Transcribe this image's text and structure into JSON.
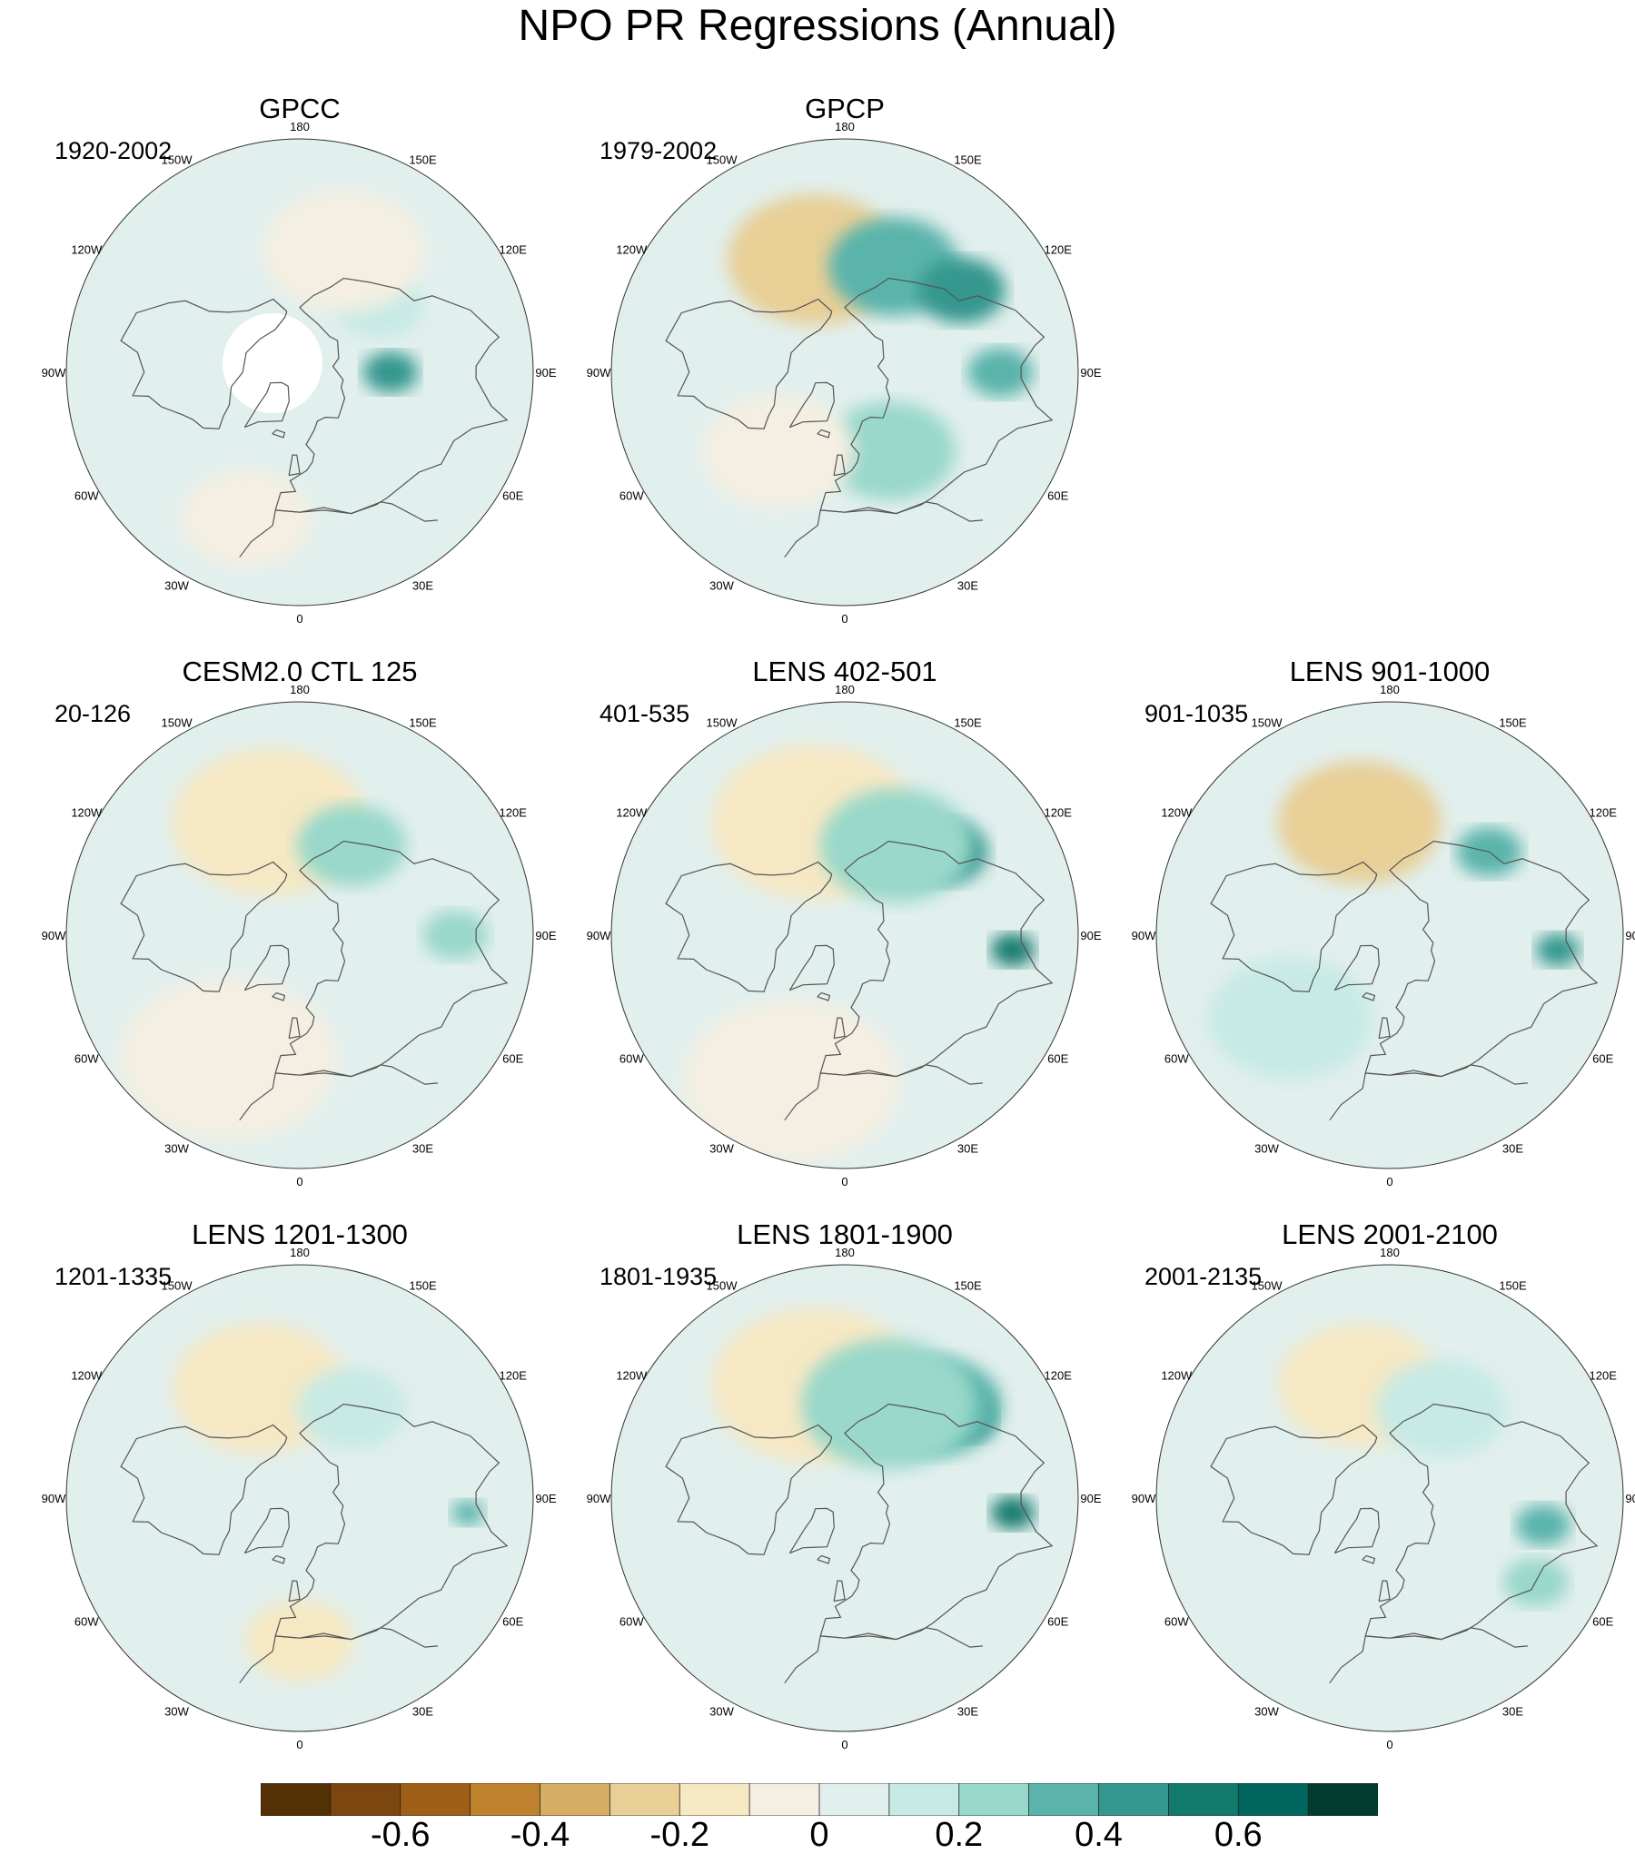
{
  "figure": {
    "title": "NPO PR Regressions (Annual)"
  },
  "longitude_labels": [
    "180",
    "150E",
    "120E",
    "90E",
    "60E",
    "30E",
    "0",
    "30W",
    "60W",
    "90W",
    "120W",
    "150W"
  ],
  "panels": [
    {
      "title": "GPCC",
      "subtitle": "1920-2002",
      "row": 0,
      "col": 0,
      "masked_land": true,
      "anomalies": [
        {
          "lon": 90,
          "lat": 55,
          "value": 0.45,
          "r": 0.05
        },
        {
          "lon": 130,
          "lat": 50,
          "value": 0.15,
          "r": 0.08
        },
        {
          "lon": -20,
          "lat": 30,
          "value": -0.1,
          "r": 0.12
        },
        {
          "lon": 160,
          "lat": 40,
          "value": -0.1,
          "r": 0.15
        }
      ]
    },
    {
      "title": "GPCP",
      "subtitle": "1979-2002",
      "row": 0,
      "col": 1,
      "masked_land": false,
      "anomalies": [
        {
          "lon": -165,
          "lat": 45,
          "value": -0.45,
          "r": 0.09
        },
        {
          "lon": -165,
          "lat": 45,
          "value": -0.25,
          "r": 0.16
        },
        {
          "lon": 155,
          "lat": 45,
          "value": 0.3,
          "r": 0.12
        },
        {
          "lon": 125,
          "lat": 35,
          "value": 0.45,
          "r": 0.08
        },
        {
          "lon": 90,
          "lat": 30,
          "value": 0.3,
          "r": 0.06
        },
        {
          "lon": 30,
          "lat": 55,
          "value": 0.2,
          "r": 0.12
        },
        {
          "lon": -40,
          "lat": 50,
          "value": -0.1,
          "r": 0.14
        }
      ]
    },
    {
      "title": "CESM2.0 CTL 125",
      "subtitle": "20-126",
      "row": 1,
      "col": 0,
      "masked_land": false,
      "anomalies": [
        {
          "lon": -165,
          "lat": 45,
          "value": -0.3,
          "r": 0.1
        },
        {
          "lon": -165,
          "lat": 45,
          "value": -0.15,
          "r": 0.18
        },
        {
          "lon": 150,
          "lat": 50,
          "value": 0.2,
          "r": 0.1
        },
        {
          "lon": 90,
          "lat": 30,
          "value": 0.25,
          "r": 0.06
        },
        {
          "lon": -30,
          "lat": 35,
          "value": -0.1,
          "r": 0.2
        }
      ]
    },
    {
      "title": "LENS 402-501",
      "subtitle": "401-535",
      "row": 1,
      "col": 1,
      "masked_land": false,
      "anomalies": [
        {
          "lon": -165,
          "lat": 45,
          "value": -0.55,
          "r": 0.07
        },
        {
          "lon": -165,
          "lat": 45,
          "value": -0.35,
          "r": 0.12
        },
        {
          "lon": -165,
          "lat": 45,
          "value": -0.2,
          "r": 0.19
        },
        {
          "lon": 130,
          "lat": 40,
          "value": 0.4,
          "r": 0.08
        },
        {
          "lon": 150,
          "lat": 50,
          "value": 0.2,
          "r": 0.14
        },
        {
          "lon": 85,
          "lat": 25,
          "value": 0.55,
          "r": 0.04
        },
        {
          "lon": -20,
          "lat": 30,
          "value": -0.1,
          "r": 0.2
        }
      ]
    },
    {
      "title": "LENS 901-1000",
      "subtitle": "901-1035",
      "row": 1,
      "col": 2,
      "masked_land": false,
      "anomalies": [
        {
          "lon": -165,
          "lat": 45,
          "value": -0.4,
          "r": 0.08
        },
        {
          "lon": -165,
          "lat": 45,
          "value": -0.25,
          "r": 0.15
        },
        {
          "lon": 85,
          "lat": 25,
          "value": 0.45,
          "r": 0.04
        },
        {
          "lon": 130,
          "lat": 40,
          "value": 0.3,
          "r": 0.06
        },
        {
          "lon": -50,
          "lat": 40,
          "value": 0.1,
          "r": 0.15
        }
      ]
    },
    {
      "title": "LENS 1201-1300",
      "subtitle": "1201-1335",
      "row": 2,
      "col": 0,
      "masked_land": false,
      "anomalies": [
        {
          "lon": -160,
          "lat": 45,
          "value": -0.3,
          "r": 0.08
        },
        {
          "lon": -160,
          "lat": 45,
          "value": -0.15,
          "r": 0.16
        },
        {
          "lon": 85,
          "lat": 25,
          "value": 0.3,
          "r": 0.03
        },
        {
          "lon": 150,
          "lat": 50,
          "value": 0.15,
          "r": 0.1
        },
        {
          "lon": 0,
          "lat": 35,
          "value": -0.15,
          "r": 0.1
        }
      ]
    },
    {
      "title": "LENS 1801-1900",
      "subtitle": "1801-1935",
      "row": 2,
      "col": 1,
      "masked_land": false,
      "anomalies": [
        {
          "lon": -165,
          "lat": 45,
          "value": -0.55,
          "r": 0.07
        },
        {
          "lon": -165,
          "lat": 45,
          "value": -0.35,
          "r": 0.12
        },
        {
          "lon": -165,
          "lat": 45,
          "value": -0.2,
          "r": 0.19
        },
        {
          "lon": 125,
          "lat": 35,
          "value": 0.55,
          "r": 0.06
        },
        {
          "lon": 135,
          "lat": 40,
          "value": 0.35,
          "r": 0.12
        },
        {
          "lon": 155,
          "lat": 50,
          "value": 0.2,
          "r": 0.16
        },
        {
          "lon": 85,
          "lat": 25,
          "value": 0.55,
          "r": 0.04
        }
      ]
    },
    {
      "title": "LENS 2001-2100",
      "subtitle": "2001-2135",
      "row": 2,
      "col": 2,
      "masked_land": false,
      "anomalies": [
        {
          "lon": -165,
          "lat": 45,
          "value": -0.3,
          "r": 0.08
        },
        {
          "lon": -165,
          "lat": 45,
          "value": -0.15,
          "r": 0.15
        },
        {
          "lon": 80,
          "lat": 30,
          "value": 0.35,
          "r": 0.05
        },
        {
          "lon": 60,
          "lat": 25,
          "value": 0.2,
          "r": 0.06
        },
        {
          "lon": 150,
          "lat": 50,
          "value": 0.12,
          "r": 0.12
        }
      ]
    }
  ],
  "colorbar": {
    "levels": [
      -0.7,
      -0.6,
      -0.5,
      -0.4,
      -0.3,
      -0.2,
      -0.1,
      0,
      0.1,
      0.2,
      0.3,
      0.4,
      0.5,
      0.6,
      0.7
    ],
    "colors": [
      "#543005",
      "#7b470f",
      "#9f5f17",
      "#bf812d",
      "#d5ad65",
      "#e8cf96",
      "#f6e8c3",
      "#f4efe2",
      "#e1efed",
      "#c7eae5",
      "#99d8ca",
      "#5ab4ac",
      "#35978f",
      "#137a6e",
      "#01665e",
      "#003c30"
    ],
    "tick_labels": [
      "-0.6",
      "-0.4",
      "-0.2",
      "0",
      "0.2",
      "0.4",
      "0.6"
    ],
    "tick_values": [
      -0.6,
      -0.4,
      -0.2,
      0,
      0.2,
      0.4,
      0.6
    ]
  }
}
